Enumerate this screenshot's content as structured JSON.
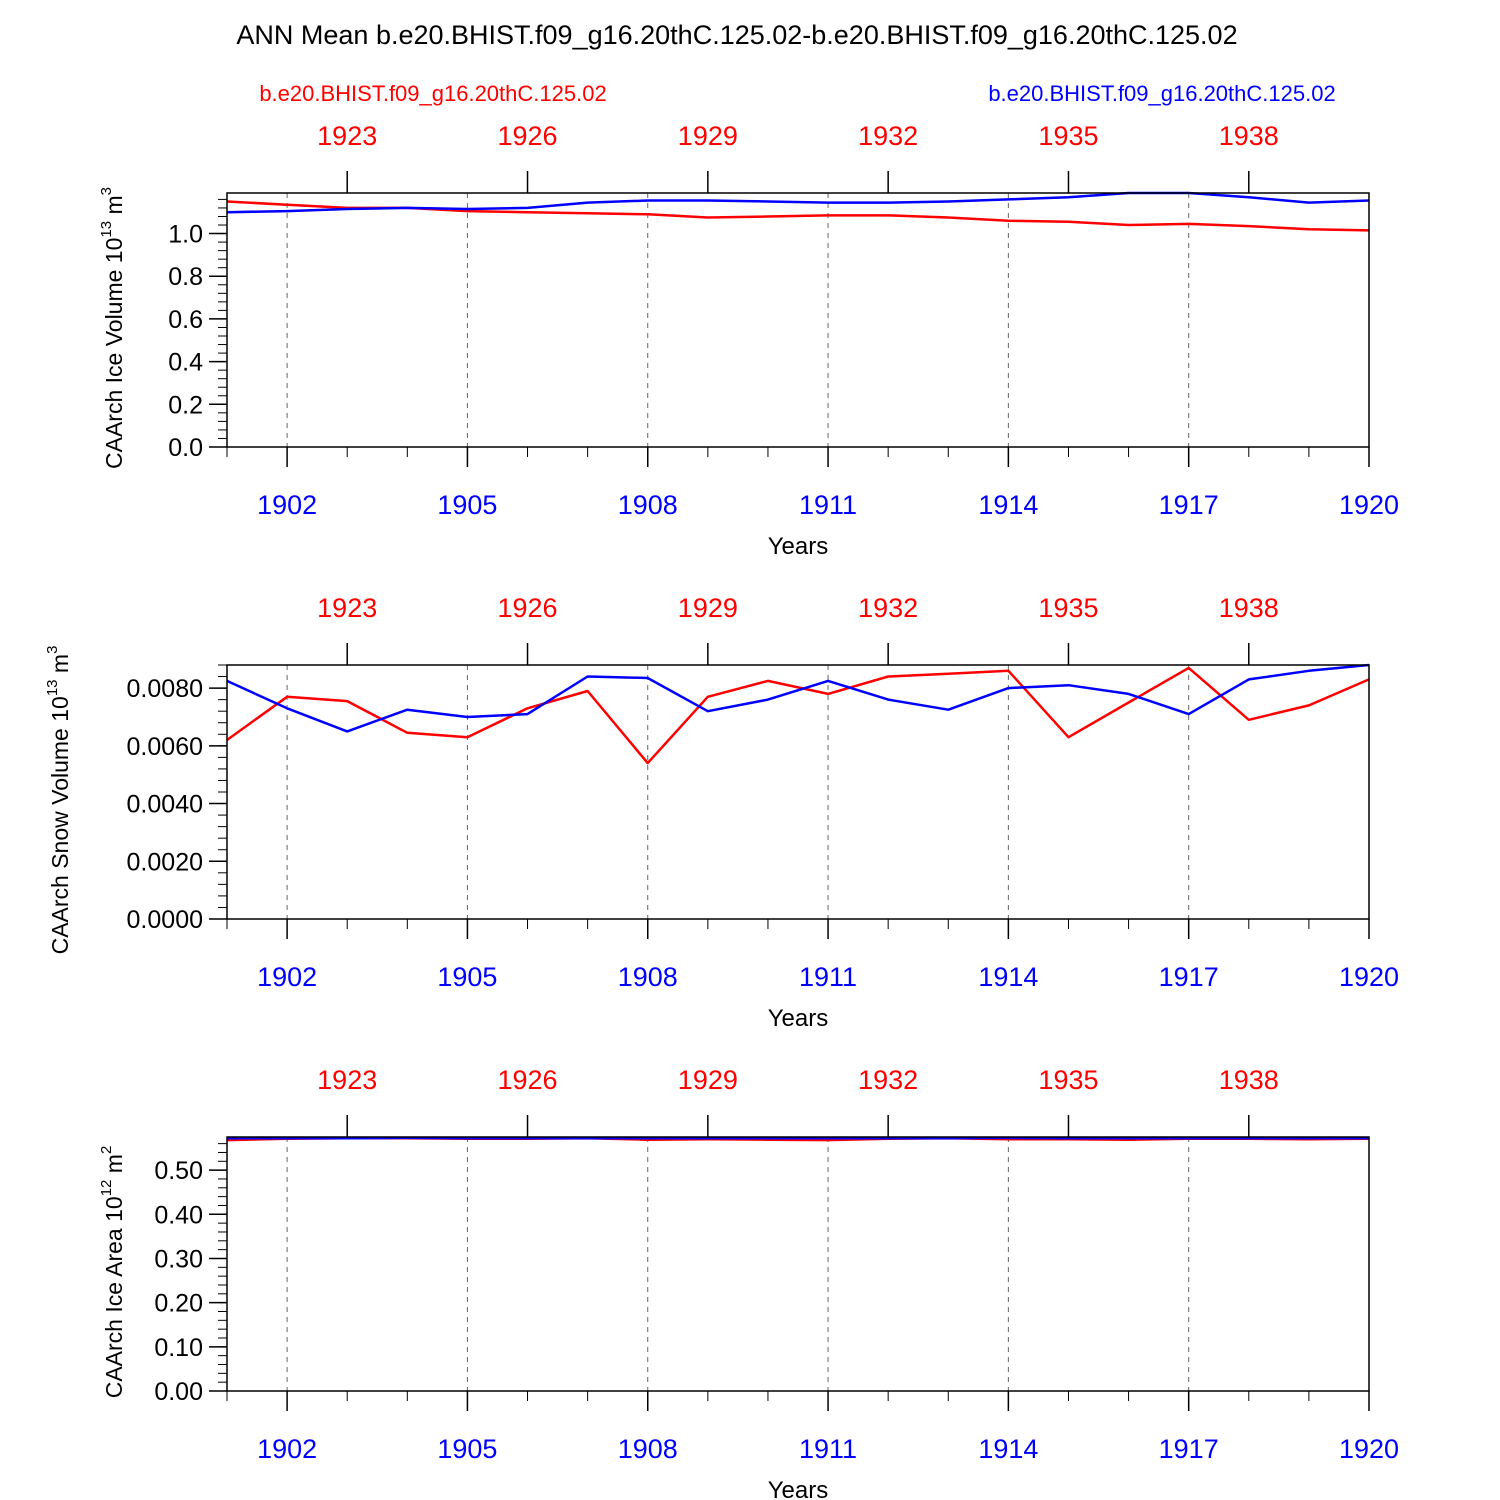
{
  "page": {
    "title": "ANN Mean b.e20.BHIST.f09_g16.20thC.125.02-b.e20.BHIST.f09_g16.20thC.125.02",
    "case_left": "b.e20.BHIST.f09_g16.20thC.125.02",
    "case_right": "b.e20.BHIST.f09_g16.20thC.125.02"
  },
  "colors": {
    "case1": "#ff0000",
    "case2": "#0000ff",
    "axis": "#000000",
    "grid": "#666666"
  },
  "chart_data": [
    {
      "type": "line",
      "xlabel": "Years",
      "ylabel_main": "CAArch Ice Volume 10",
      "ylabel_exp": "13",
      "ylabel_unit": " m",
      "ylabel_unit_exp": "3",
      "ylim": [
        0.0,
        1.19
      ],
      "ytick_values": [
        0.0,
        0.2,
        0.4,
        0.6,
        0.8,
        1.0
      ],
      "ytick_labels": [
        "0.0",
        "0.2",
        "0.4",
        "0.6",
        "0.8",
        "1.0"
      ],
      "ytick_minor_step": 0.04,
      "xlim": [
        1901,
        1920
      ],
      "x_bottom_ticks": [
        1902,
        1905,
        1908,
        1911,
        1914,
        1917,
        1920
      ],
      "x_top_ticks": [
        1923,
        1926,
        1929,
        1932,
        1935,
        1938
      ],
      "x_top_offset": 20,
      "grid_x": [
        1902,
        1905,
        1908,
        1911,
        1914,
        1917
      ],
      "x": [
        1901,
        1902,
        1903,
        1904,
        1905,
        1906,
        1907,
        1908,
        1909,
        1910,
        1911,
        1912,
        1913,
        1914,
        1915,
        1916,
        1917,
        1918,
        1919,
        1920
      ],
      "series": [
        {
          "name": "b.e20.BHIST.f09_g16.20thC.125.02",
          "color": "#ff0000",
          "values": [
            1.15,
            1.135,
            1.12,
            1.12,
            1.105,
            1.1,
            1.095,
            1.09,
            1.075,
            1.08,
            1.085,
            1.085,
            1.075,
            1.06,
            1.055,
            1.04,
            1.045,
            1.035,
            1.02,
            1.015
          ]
        },
        {
          "name": "b.e20.BHIST.f09_g16.20thC.125.02",
          "color": "#0000ff",
          "values": [
            1.1,
            1.105,
            1.115,
            1.12,
            1.115,
            1.12,
            1.145,
            1.155,
            1.155,
            1.15,
            1.145,
            1.145,
            1.15,
            1.16,
            1.17,
            1.19,
            1.19,
            1.17,
            1.145,
            1.155
          ]
        }
      ]
    },
    {
      "type": "line",
      "xlabel": "Years",
      "ylabel_main": "CAArch Snow Volume 10",
      "ylabel_exp": "13",
      "ylabel_unit": " m",
      "ylabel_unit_exp": "3",
      "ylim": [
        0.0,
        0.0088
      ],
      "ytick_values": [
        0.0,
        0.002,
        0.004,
        0.006,
        0.008
      ],
      "ytick_labels": [
        "0.0000",
        "0.0020",
        "0.0040",
        "0.0060",
        "0.0080"
      ],
      "ytick_minor_step": 0.0004,
      "xlim": [
        1901,
        1920
      ],
      "x_bottom_ticks": [
        1902,
        1905,
        1908,
        1911,
        1914,
        1917,
        1920
      ],
      "x_top_ticks": [
        1923,
        1926,
        1929,
        1932,
        1935,
        1938
      ],
      "x_top_offset": 20,
      "grid_x": [
        1902,
        1905,
        1908,
        1911,
        1914,
        1917
      ],
      "x": [
        1901,
        1902,
        1903,
        1904,
        1905,
        1906,
        1907,
        1908,
        1909,
        1910,
        1911,
        1912,
        1913,
        1914,
        1915,
        1916,
        1917,
        1918,
        1919,
        1920
      ],
      "series": [
        {
          "name": "b.e20.BHIST.f09_g16.20thC.125.02",
          "color": "#ff0000",
          "values": [
            0.0062,
            0.0077,
            0.00755,
            0.00645,
            0.0063,
            0.0073,
            0.0079,
            0.0054,
            0.0077,
            0.00825,
            0.0078,
            0.0084,
            0.0085,
            0.0086,
            0.0063,
            0.0075,
            0.0087,
            0.0069,
            0.0074,
            0.0083
          ]
        },
        {
          "name": "b.e20.BHIST.f09_g16.20thC.125.02",
          "color": "#0000ff",
          "values": [
            0.00825,
            0.0073,
            0.0065,
            0.00725,
            0.007,
            0.0071,
            0.0084,
            0.00835,
            0.0072,
            0.0076,
            0.00825,
            0.0076,
            0.00725,
            0.008,
            0.0081,
            0.0078,
            0.0071,
            0.0083,
            0.0086,
            0.0088
          ]
        }
      ]
    },
    {
      "type": "line",
      "xlabel": "Years",
      "ylabel_main": "CAArch Ice Area 10",
      "ylabel_exp": "12",
      "ylabel_unit": " m",
      "ylabel_unit_exp": "2",
      "ylim": [
        0.0,
        0.575
      ],
      "ytick_values": [
        0.0,
        0.1,
        0.2,
        0.3,
        0.4,
        0.5
      ],
      "ytick_labels": [
        "0.00",
        "0.10",
        "0.20",
        "0.30",
        "0.40",
        "0.50"
      ],
      "ytick_minor_step": 0.02,
      "xlim": [
        1901,
        1920
      ],
      "x_bottom_ticks": [
        1902,
        1905,
        1908,
        1911,
        1914,
        1917,
        1920
      ],
      "x_top_ticks": [
        1923,
        1926,
        1929,
        1932,
        1935,
        1938
      ],
      "x_top_offset": 20,
      "grid_x": [
        1902,
        1905,
        1908,
        1911,
        1914,
        1917
      ],
      "x": [
        1901,
        1902,
        1903,
        1904,
        1905,
        1906,
        1907,
        1908,
        1909,
        1910,
        1911,
        1912,
        1913,
        1914,
        1915,
        1916,
        1917,
        1918,
        1919,
        1920
      ],
      "series": [
        {
          "name": "b.e20.BHIST.f09_g16.20thC.125.02",
          "color": "#ff0000",
          "values": [
            0.568,
            0.571,
            0.572,
            0.572,
            0.571,
            0.571,
            0.572,
            0.569,
            0.57,
            0.569,
            0.568,
            0.571,
            0.572,
            0.57,
            0.57,
            0.569,
            0.571,
            0.571,
            0.57,
            0.571
          ]
        },
        {
          "name": "b.e20.BHIST.f09_g16.20thC.125.02",
          "color": "#0000ff",
          "values": [
            0.572,
            0.572,
            0.572,
            0.573,
            0.572,
            0.572,
            0.572,
            0.572,
            0.572,
            0.572,
            0.572,
            0.572,
            0.572,
            0.573,
            0.572,
            0.572,
            0.572,
            0.572,
            0.572,
            0.572
          ]
        }
      ]
    }
  ]
}
